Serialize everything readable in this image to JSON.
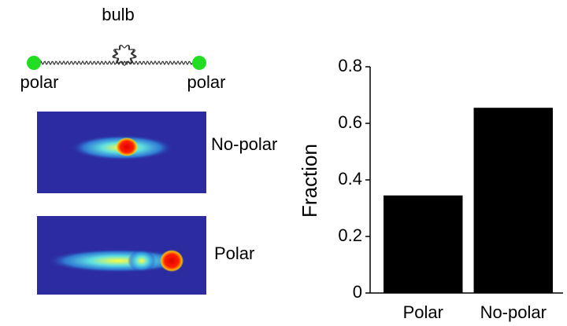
{
  "diagram": {
    "bulb_label": "bulb",
    "left_end_label": "polar",
    "right_end_label": "polar",
    "image_labels": [
      "No-polar",
      "Polar"
    ]
  },
  "chart_data": {
    "type": "bar",
    "categories": [
      "Polar",
      "No-polar"
    ],
    "values": [
      0.345,
      0.655
    ],
    "color": "#000000",
    "ylabel": "Fraction",
    "ylim": [
      0,
      0.8
    ],
    "yticks": [
      0,
      0.2,
      0.4,
      0.6,
      0.8
    ],
    "grid": false
  }
}
